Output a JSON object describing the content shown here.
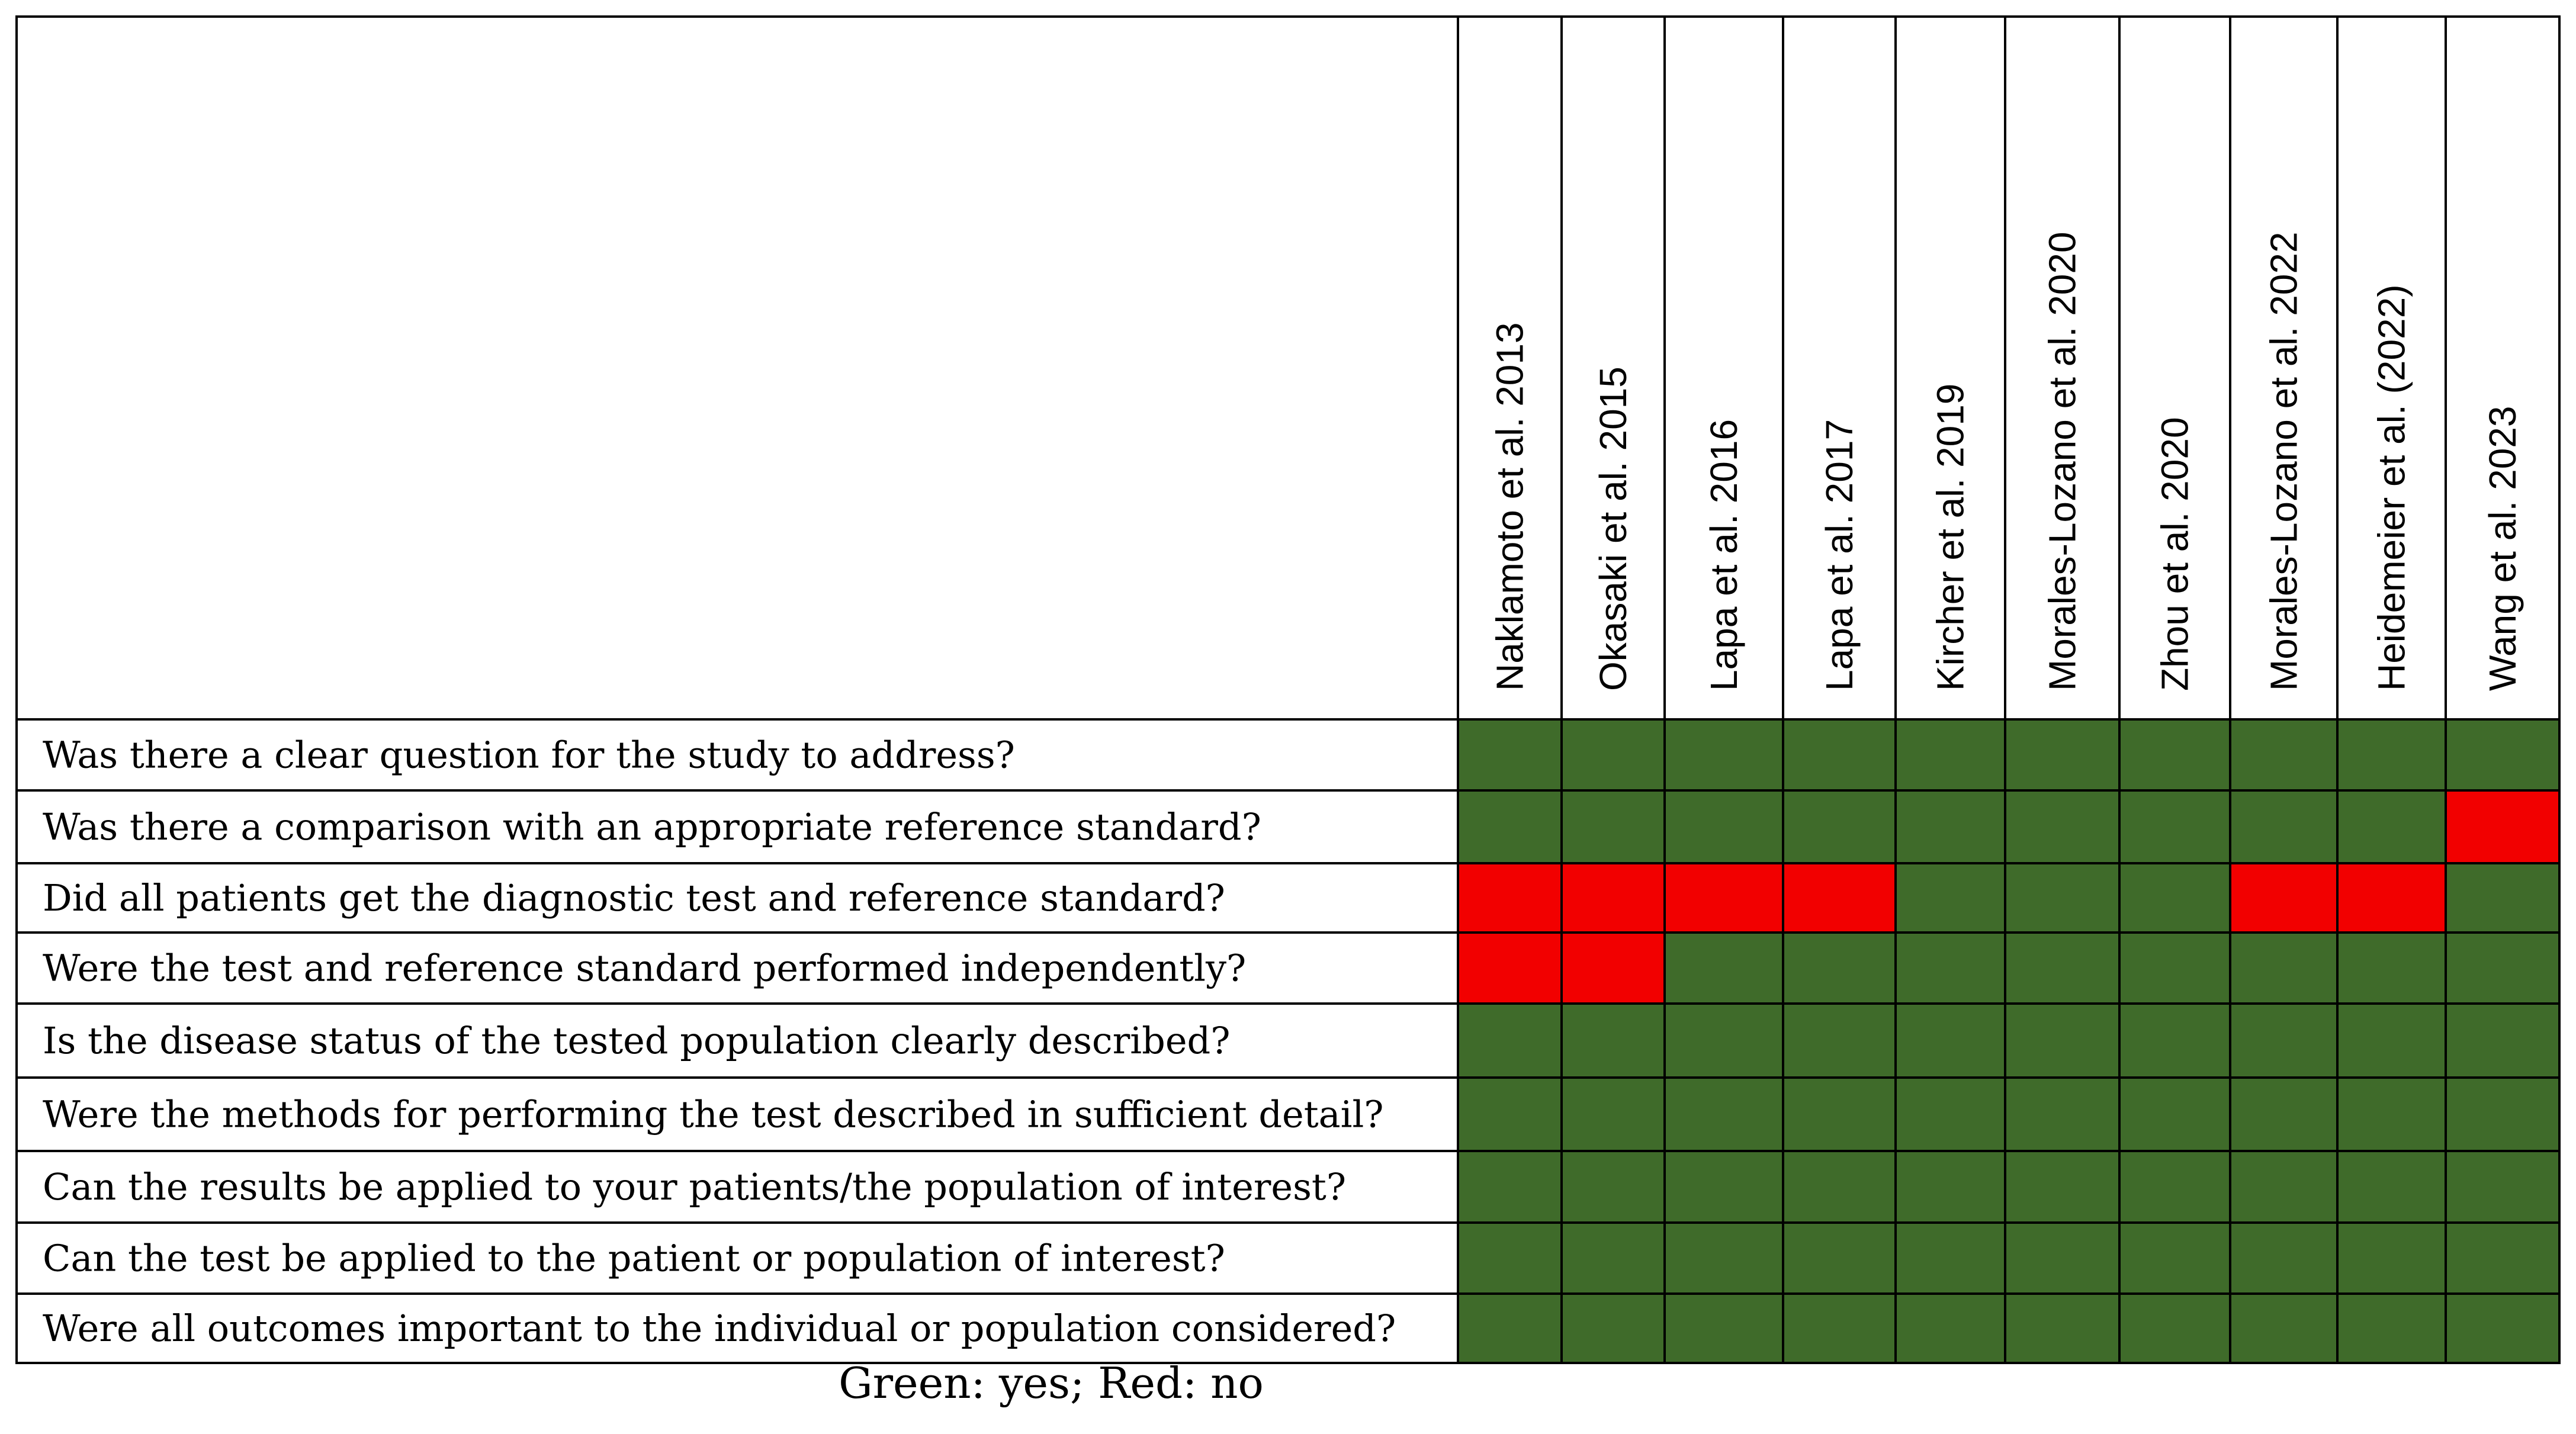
{
  "table": {
    "studies": [
      "Naklamoto et al. 2013",
      "Okasaki et al. 2015",
      "Lapa et al. 2016",
      "Lapa et al. 2017",
      "Kircher et al. 2019",
      "Morales-Lozano et al. 2020",
      "Zhou et al. 2020",
      "Morales-Lozano et al. 2022",
      "Heidemeier et al. (2022)",
      "Wang et al. 2023"
    ],
    "questions": [
      "Was there a clear question for the study to address?",
      "Was there a comparison with an appropriate reference standard?",
      "Did all patients get the diagnostic test and reference standard?",
      "Were the test and reference standard performed independently?",
      "Is the disease status of the tested population clearly described?",
      "Were the methods for performing the test described in sufficient detail?",
      "Can the results be applied to your patients/the population of interest?",
      "Can the test be applied to the patient or population of interest?",
      "Were all outcomes important to the individual or population considered?"
    ],
    "answers": [
      [
        "yes",
        "yes",
        "yes",
        "yes",
        "yes",
        "yes",
        "yes",
        "yes",
        "yes",
        "yes"
      ],
      [
        "yes",
        "yes",
        "yes",
        "yes",
        "yes",
        "yes",
        "yes",
        "yes",
        "yes",
        "no"
      ],
      [
        "no",
        "no",
        "no",
        "no",
        "yes",
        "yes",
        "yes",
        "no",
        "no",
        "yes"
      ],
      [
        "no",
        "no",
        "yes",
        "yes",
        "yes",
        "yes",
        "yes",
        "yes",
        "yes",
        "yes"
      ],
      [
        "yes",
        "yes",
        "yes",
        "yes",
        "yes",
        "yes",
        "yes",
        "yes",
        "yes",
        "yes"
      ],
      [
        "yes",
        "yes",
        "yes",
        "yes",
        "yes",
        "yes",
        "yes",
        "yes",
        "yes",
        "yes"
      ],
      [
        "yes",
        "yes",
        "yes",
        "yes",
        "yes",
        "yes",
        "yes",
        "yes",
        "yes",
        "yes"
      ],
      [
        "yes",
        "yes",
        "yes",
        "yes",
        "yes",
        "yes",
        "yes",
        "yes",
        "yes",
        "yes"
      ],
      [
        "yes",
        "yes",
        "yes",
        "yes",
        "yes",
        "yes",
        "yes",
        "yes",
        "yes",
        "yes"
      ]
    ],
    "colors": {
      "yes": "#3f6b2a",
      "no": "#f20000",
      "border": "#000000"
    }
  },
  "legend": "Green: yes; Red: no"
}
